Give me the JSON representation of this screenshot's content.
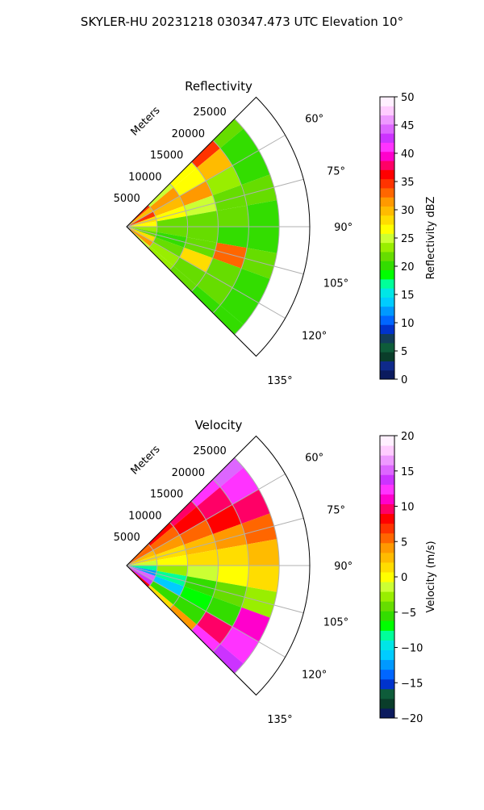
{
  "figure_title": "SKYLER-HU  20231218  030347.473 UTC Elevation 10°",
  "colors": {
    "reflectivity_cmap": [
      "#0b1a5e",
      "#0f2a8a",
      "#0a3d2a",
      "#0e5c3a",
      "#123d5a",
      "#0033cc",
      "#0066ff",
      "#0099ff",
      "#00ccff",
      "#00e6e6",
      "#00ff99",
      "#00ff00",
      "#33dd00",
      "#66dd00",
      "#99ee00",
      "#ccff33",
      "#ffff00",
      "#ffdd00",
      "#ffbb00",
      "#ff9900",
      "#ff6600",
      "#ff3300",
      "#ff0000",
      "#ff0066",
      "#ff00cc",
      "#ff33ff",
      "#cc33ff",
      "#dd66ff",
      "#ee99ff",
      "#ffccff",
      "#fff0ff"
    ],
    "velocity_cmap": [
      "#0b1a5e",
      "#0a3d2a",
      "#0e5c3a",
      "#0033cc",
      "#0066ff",
      "#0099ff",
      "#00ccff",
      "#00e6e6",
      "#00ff99",
      "#00ff00",
      "#33dd00",
      "#66dd00",
      "#99ee00",
      "#ccff33",
      "#ffff00",
      "#ffdd00",
      "#ffbb00",
      "#ff9900",
      "#ff6600",
      "#ff3300",
      "#ff0000",
      "#ff0066",
      "#ff00cc",
      "#ff33ff",
      "#cc33ff",
      "#dd66ff",
      "#ee99ff",
      "#ffccff",
      "#fff0ff"
    ]
  },
  "chart_data": [
    {
      "type": "heatmap",
      "subtype": "polar-sector",
      "title": "Reflectivity",
      "radial_axis_label": "Meters",
      "radial_ticks": [
        5000,
        10000,
        15000,
        20000,
        25000
      ],
      "radial_tick_labels": [
        "5000",
        "10000",
        "15000",
        "20000",
        "25000"
      ],
      "rlim": [
        0,
        30000
      ],
      "angle_ticks": [
        60,
        75,
        90,
        105,
        120,
        135
      ],
      "angle_tick_labels": [
        "60°",
        "75°",
        "90°",
        "105°",
        "120°",
        "135°"
      ],
      "theta_range_deg": [
        45,
        135
      ],
      "data_theta_range_deg": [
        45,
        135
      ],
      "colorbar": {
        "label": "Reflectivity dBZ",
        "range": [
          0,
          50
        ],
        "ticks": [
          0,
          5,
          10,
          15,
          20,
          25,
          30,
          35,
          40,
          45,
          50
        ],
        "tick_labels": [
          "0",
          "5",
          "10",
          "15",
          "20",
          "25",
          "30",
          "35",
          "40",
          "45",
          "50"
        ]
      },
      "grid": true,
      "field": [
        {
          "r_km": [
            0,
            5
          ],
          "values_by_angle": [
            [
              45,
              35
            ],
            [
              55,
              30
            ],
            [
              65,
              35
            ],
            [
              75,
              28
            ],
            [
              85,
              26
            ],
            [
              95,
              24
            ],
            [
              105,
              22
            ],
            [
              115,
              28
            ],
            [
              125,
              32
            ],
            [
              135,
              25
            ]
          ]
        },
        {
          "r_km": [
            5,
            10
          ],
          "values_by_angle": [
            [
              45,
              25
            ],
            [
              55,
              32
            ],
            [
              65,
              30
            ],
            [
              75,
              26
            ],
            [
              85,
              22
            ],
            [
              95,
              22
            ],
            [
              105,
              20
            ],
            [
              115,
              22
            ],
            [
              125,
              24
            ],
            [
              135,
              23
            ]
          ]
        },
        {
          "r_km": [
            10,
            15
          ],
          "values_by_angle": [
            [
              45,
              27
            ],
            [
              55,
              26
            ],
            [
              65,
              32
            ],
            [
              75,
              25
            ],
            [
              85,
              22
            ],
            [
              95,
              21
            ],
            [
              105,
              22
            ],
            [
              115,
              28
            ],
            [
              125,
              22
            ],
            [
              135,
              22
            ]
          ]
        },
        {
          "r_km": [
            15,
            20
          ],
          "values_by_angle": [
            [
              45,
              34
            ],
            [
              55,
              30
            ],
            [
              65,
              23
            ],
            [
              75,
              22
            ],
            [
              85,
              21
            ],
            [
              95,
              20
            ],
            [
              105,
              33
            ],
            [
              115,
              22
            ],
            [
              125,
              21
            ],
            [
              135,
              20
            ]
          ]
        },
        {
          "r_km": [
            20,
            25
          ],
          "values_by_angle": [
            [
              45,
              22
            ],
            [
              55,
              20
            ],
            [
              65,
              20
            ],
            [
              75,
              21
            ],
            [
              85,
              20
            ],
            [
              95,
              20
            ],
            [
              105,
              21
            ],
            [
              115,
              20
            ],
            [
              125,
              20
            ],
            [
              135,
              20
            ]
          ]
        }
      ]
    },
    {
      "type": "heatmap",
      "subtype": "polar-sector",
      "title": "Velocity",
      "radial_axis_label": "Meters",
      "radial_ticks": [
        5000,
        10000,
        15000,
        20000,
        25000
      ],
      "radial_tick_labels": [
        "5000",
        "10000",
        "15000",
        "20000",
        "25000"
      ],
      "rlim": [
        0,
        30000
      ],
      "angle_ticks": [
        60,
        75,
        90,
        105,
        120,
        135
      ],
      "angle_tick_labels": [
        "60°",
        "75°",
        "90°",
        "105°",
        "120°",
        "135°"
      ],
      "theta_range_deg": [
        45,
        135
      ],
      "data_theta_range_deg": [
        45,
        135
      ],
      "colorbar": {
        "label": "Velocity (m/s)",
        "range": [
          -20,
          20
        ],
        "ticks": [
          -20,
          -15,
          -10,
          -5,
          0,
          5,
          10,
          15,
          20
        ],
        "tick_labels": [
          "−20",
          "−15",
          "−10",
          "−5",
          "0",
          "5",
          "10",
          "15",
          "20"
        ]
      },
      "grid": true,
      "field": [
        {
          "r_km": [
            0,
            5
          ],
          "values_by_angle": [
            [
              45,
              6
            ],
            [
              55,
              5
            ],
            [
              65,
              3
            ],
            [
              75,
              1
            ],
            [
              85,
              -2
            ],
            [
              95,
              -8
            ],
            [
              105,
              -12
            ],
            [
              115,
              15
            ],
            [
              125,
              14
            ],
            [
              135,
              8
            ]
          ]
        },
        {
          "r_km": [
            5,
            10
          ],
          "values_by_angle": [
            [
              45,
              8
            ],
            [
              55,
              6
            ],
            [
              65,
              4
            ],
            [
              75,
              2
            ],
            [
              85,
              0
            ],
            [
              95,
              -3
            ],
            [
              105,
              -8
            ],
            [
              115,
              -11
            ],
            [
              125,
              -6
            ],
            [
              135,
              2
            ]
          ]
        },
        {
          "r_km": [
            10,
            15
          ],
          "values_by_angle": [
            [
              45,
              9
            ],
            [
              55,
              8
            ],
            [
              65,
              6
            ],
            [
              75,
              3
            ],
            [
              85,
              1
            ],
            [
              95,
              -2
            ],
            [
              105,
              -6
            ],
            [
              115,
              -7
            ],
            [
              125,
              -5
            ],
            [
              135,
              4
            ]
          ]
        },
        {
          "r_km": [
            15,
            20
          ],
          "values_by_angle": [
            [
              45,
              12
            ],
            [
              55,
              10
            ],
            [
              65,
              8
            ],
            [
              75,
              4
            ],
            [
              85,
              2
            ],
            [
              95,
              0
            ],
            [
              105,
              -4
            ],
            [
              115,
              -5
            ],
            [
              125,
              10
            ],
            [
              135,
              12
            ]
          ]
        },
        {
          "r_km": [
            20,
            25
          ],
          "values_by_angle": [
            [
              45,
              15
            ],
            [
              55,
              13
            ],
            [
              65,
              10
            ],
            [
              75,
              6
            ],
            [
              85,
              3
            ],
            [
              95,
              1
            ],
            [
              105,
              -3
            ],
            [
              115,
              11
            ],
            [
              125,
              12
            ],
            [
              135,
              14
            ]
          ]
        }
      ]
    }
  ]
}
